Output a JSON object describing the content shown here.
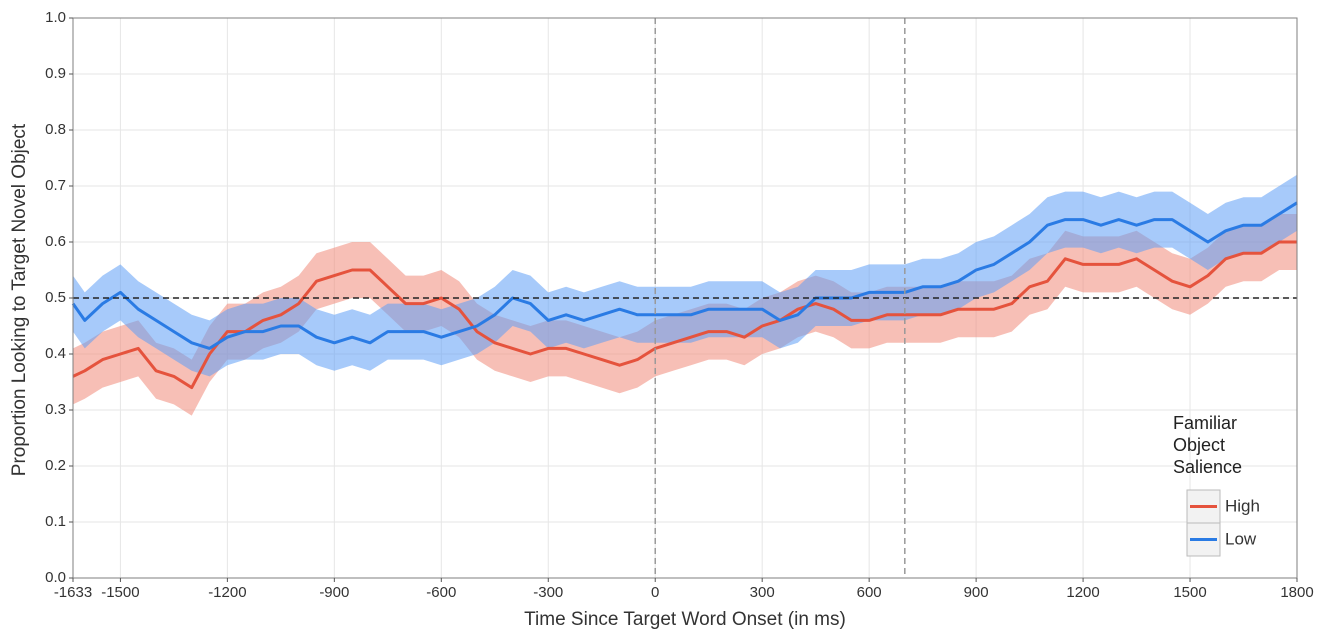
{
  "chart_data": {
    "type": "line",
    "x_label": "Time Since Target Word Onset (in ms)",
    "y_label": "Proportion Looking to Target Novel Object",
    "legend_title": "Familiar Object Salience",
    "legend_position": "right",
    "grid": true,
    "xlim": [
      -1633,
      1800
    ],
    "ylim": [
      0,
      1
    ],
    "xticks": [
      -1633,
      -1500,
      -1200,
      -900,
      -600,
      -300,
      0,
      300,
      600,
      900,
      1200,
      1500,
      1800
    ],
    "yticks": [
      {
        "value": 0,
        "label": "0.0"
      },
      0.1,
      0.2,
      0.3,
      0.4,
      0.5,
      0.6,
      0.7,
      0.8,
      0.9,
      {
        "value": 1,
        "label": "1.0"
      }
    ],
    "hlines": [
      0.5
    ],
    "vlines": [
      0,
      700
    ],
    "x": [
      -1633,
      -1600,
      -1550,
      -1500,
      -1450,
      -1400,
      -1350,
      -1300,
      -1250,
      -1200,
      -1150,
      -1100,
      -1050,
      -1000,
      -950,
      -900,
      -850,
      -800,
      -750,
      -700,
      -650,
      -600,
      -550,
      -500,
      -450,
      -400,
      -350,
      -300,
      -250,
      -200,
      -150,
      -100,
      -50,
      0,
      50,
      100,
      150,
      200,
      250,
      300,
      350,
      400,
      450,
      500,
      550,
      600,
      650,
      700,
      750,
      800,
      850,
      900,
      950,
      1000,
      1050,
      1100,
      1150,
      1200,
      1250,
      1300,
      1350,
      1400,
      1450,
      1500,
      1550,
      1600,
      1650,
      1700,
      1750,
      1800
    ],
    "series": [
      {
        "name": "High",
        "color": "#e5533d",
        "band_color": "#f08a7a",
        "values": [
          0.36,
          0.37,
          0.39,
          0.4,
          0.41,
          0.37,
          0.36,
          0.34,
          0.4,
          0.44,
          0.44,
          0.46,
          0.47,
          0.49,
          0.53,
          0.54,
          0.55,
          0.55,
          0.52,
          0.49,
          0.49,
          0.5,
          0.48,
          0.44,
          0.42,
          0.41,
          0.4,
          0.41,
          0.41,
          0.4,
          0.39,
          0.38,
          0.39,
          0.41,
          0.42,
          0.43,
          0.44,
          0.44,
          0.43,
          0.45,
          0.46,
          0.48,
          0.49,
          0.48,
          0.46,
          0.46,
          0.47,
          0.47,
          0.47,
          0.47,
          0.48,
          0.48,
          0.48,
          0.49,
          0.52,
          0.53,
          0.57,
          0.56,
          0.56,
          0.56,
          0.57,
          0.55,
          0.53,
          0.52,
          0.54,
          0.57,
          0.58,
          0.58,
          0.6,
          0.6
        ],
        "lower": [
          0.31,
          0.32,
          0.34,
          0.35,
          0.36,
          0.32,
          0.31,
          0.29,
          0.35,
          0.39,
          0.39,
          0.41,
          0.42,
          0.44,
          0.48,
          0.49,
          0.5,
          0.5,
          0.47,
          0.44,
          0.44,
          0.45,
          0.43,
          0.39,
          0.37,
          0.36,
          0.35,
          0.36,
          0.36,
          0.35,
          0.34,
          0.33,
          0.34,
          0.36,
          0.37,
          0.38,
          0.39,
          0.39,
          0.38,
          0.4,
          0.41,
          0.43,
          0.44,
          0.43,
          0.41,
          0.41,
          0.42,
          0.42,
          0.42,
          0.42,
          0.43,
          0.43,
          0.43,
          0.44,
          0.47,
          0.48,
          0.52,
          0.51,
          0.51,
          0.51,
          0.52,
          0.5,
          0.48,
          0.47,
          0.49,
          0.52,
          0.53,
          0.53,
          0.55,
          0.55
        ],
        "upper": [
          0.41,
          0.42,
          0.44,
          0.45,
          0.46,
          0.42,
          0.41,
          0.39,
          0.45,
          0.49,
          0.49,
          0.51,
          0.52,
          0.54,
          0.58,
          0.59,
          0.6,
          0.6,
          0.57,
          0.54,
          0.54,
          0.55,
          0.53,
          0.49,
          0.47,
          0.46,
          0.45,
          0.46,
          0.46,
          0.45,
          0.44,
          0.43,
          0.44,
          0.46,
          0.47,
          0.48,
          0.49,
          0.49,
          0.48,
          0.5,
          0.51,
          0.53,
          0.54,
          0.53,
          0.51,
          0.51,
          0.52,
          0.52,
          0.52,
          0.52,
          0.53,
          0.53,
          0.53,
          0.54,
          0.57,
          0.58,
          0.62,
          0.61,
          0.61,
          0.61,
          0.62,
          0.6,
          0.58,
          0.57,
          0.59,
          0.62,
          0.63,
          0.63,
          0.65,
          0.65
        ]
      },
      {
        "name": "Low",
        "color": "#2a7be4",
        "band_color": "#5e9ff5",
        "values": [
          0.49,
          0.46,
          0.49,
          0.51,
          0.48,
          0.46,
          0.44,
          0.42,
          0.41,
          0.43,
          0.44,
          0.44,
          0.45,
          0.45,
          0.43,
          0.42,
          0.43,
          0.42,
          0.44,
          0.44,
          0.44,
          0.43,
          0.44,
          0.45,
          0.47,
          0.5,
          0.49,
          0.46,
          0.47,
          0.46,
          0.47,
          0.48,
          0.47,
          0.47,
          0.47,
          0.47,
          0.48,
          0.48,
          0.48,
          0.48,
          0.46,
          0.47,
          0.5,
          0.5,
          0.5,
          0.51,
          0.51,
          0.51,
          0.52,
          0.52,
          0.53,
          0.55,
          0.56,
          0.58,
          0.6,
          0.63,
          0.64,
          0.64,
          0.63,
          0.64,
          0.63,
          0.64,
          0.64,
          0.62,
          0.6,
          0.62,
          0.63,
          0.63,
          0.65,
          0.67
        ],
        "lower": [
          0.44,
          0.41,
          0.44,
          0.46,
          0.43,
          0.41,
          0.39,
          0.37,
          0.36,
          0.38,
          0.39,
          0.39,
          0.4,
          0.4,
          0.38,
          0.37,
          0.38,
          0.37,
          0.39,
          0.39,
          0.39,
          0.38,
          0.39,
          0.4,
          0.42,
          0.45,
          0.44,
          0.41,
          0.42,
          0.41,
          0.42,
          0.43,
          0.42,
          0.42,
          0.42,
          0.42,
          0.43,
          0.43,
          0.43,
          0.43,
          0.41,
          0.42,
          0.45,
          0.45,
          0.45,
          0.46,
          0.46,
          0.46,
          0.47,
          0.47,
          0.48,
          0.5,
          0.51,
          0.53,
          0.55,
          0.58,
          0.59,
          0.59,
          0.58,
          0.59,
          0.58,
          0.59,
          0.59,
          0.57,
          0.55,
          0.57,
          0.58,
          0.58,
          0.6,
          0.62
        ],
        "upper": [
          0.54,
          0.51,
          0.54,
          0.56,
          0.53,
          0.51,
          0.49,
          0.47,
          0.46,
          0.48,
          0.49,
          0.49,
          0.5,
          0.5,
          0.48,
          0.47,
          0.48,
          0.47,
          0.49,
          0.49,
          0.49,
          0.48,
          0.49,
          0.5,
          0.52,
          0.55,
          0.54,
          0.51,
          0.52,
          0.51,
          0.52,
          0.53,
          0.52,
          0.52,
          0.52,
          0.52,
          0.53,
          0.53,
          0.53,
          0.53,
          0.51,
          0.52,
          0.55,
          0.55,
          0.55,
          0.56,
          0.56,
          0.56,
          0.57,
          0.57,
          0.58,
          0.6,
          0.61,
          0.63,
          0.65,
          0.68,
          0.69,
          0.69,
          0.68,
          0.69,
          0.68,
          0.69,
          0.69,
          0.67,
          0.65,
          0.67,
          0.68,
          0.68,
          0.7,
          0.72
        ]
      }
    ]
  }
}
